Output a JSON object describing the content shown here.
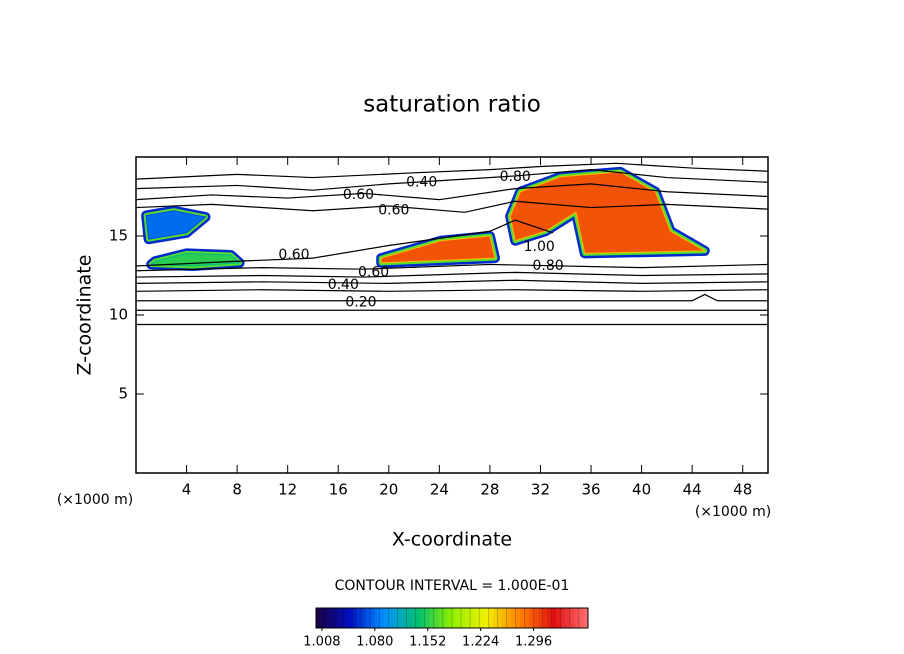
{
  "chart_data": {
    "type": "contour",
    "title": "saturation ratio",
    "x_label": "X-coordinate",
    "y_label": "Z-coordinate",
    "x_unit": "(×1000 m)",
    "y_unit": "(×1000 m)",
    "xlim": [
      0,
      50
    ],
    "ylim": [
      0,
      20
    ],
    "xticks": [
      4,
      8,
      12,
      16,
      20,
      24,
      28,
      32,
      36,
      40,
      44,
      48
    ],
    "yticks": [
      5,
      10,
      15
    ],
    "contour_interval": "CONTOUR INTERVAL = 1.000E-01",
    "contours": [
      {
        "x": [
          0,
          50
        ],
        "y": [
          9.4,
          9.4
        ]
      },
      {
        "x": [
          0,
          50
        ],
        "y": [
          10.3,
          10.3
        ]
      },
      {
        "x": [
          0,
          44,
          45,
          46,
          50
        ],
        "y": [
          10.9,
          10.9,
          11.3,
          10.9,
          10.9
        ]
      },
      {
        "x": [
          0,
          10,
          20,
          30,
          40,
          50
        ],
        "y": [
          11.5,
          11.6,
          11.5,
          11.6,
          11.5,
          11.6
        ]
      },
      {
        "x": [
          0,
          10,
          20,
          30,
          40,
          50
        ],
        "y": [
          12.0,
          12.1,
          12.0,
          12.2,
          12.0,
          12.1
        ]
      },
      {
        "x": [
          0,
          10,
          18,
          30,
          40,
          50
        ],
        "y": [
          12.4,
          12.5,
          12.4,
          12.7,
          12.5,
          12.6
        ]
      },
      {
        "x": [
          0,
          10,
          18,
          28,
          40,
          50
        ],
        "y": [
          12.8,
          13.0,
          12.9,
          13.2,
          13.0,
          13.2
        ]
      },
      {
        "x": [
          0,
          8,
          14,
          20,
          28,
          30,
          33
        ],
        "y": [
          13.1,
          13.4,
          13.6,
          14.4,
          15.3,
          16.0,
          15.2
        ]
      },
      {
        "x": [
          0,
          6,
          14,
          20,
          26,
          30,
          36,
          42,
          50
        ],
        "y": [
          16.8,
          17.0,
          16.6,
          16.9,
          16.5,
          17.2,
          16.8,
          17.0,
          16.7
        ]
      },
      {
        "x": [
          0,
          6,
          12,
          18,
          24,
          30,
          36,
          42,
          50
        ],
        "y": [
          17.3,
          17.6,
          17.4,
          17.7,
          17.3,
          18.0,
          18.3,
          17.8,
          17.5
        ]
      },
      {
        "x": [
          0,
          8,
          14,
          20,
          26,
          30,
          36,
          42,
          50
        ],
        "y": [
          18.0,
          18.2,
          17.9,
          18.3,
          18.6,
          18.8,
          19.2,
          18.7,
          18.4
        ]
      },
      {
        "x": [
          0,
          8,
          14,
          22,
          28,
          32,
          38,
          44,
          50
        ],
        "y": [
          18.6,
          18.9,
          18.7,
          19.0,
          19.2,
          19.4,
          19.6,
          19.3,
          19.1
        ]
      }
    ],
    "regions": [
      {
        "level": 1.296,
        "x": [
          19.4,
          24.1,
          28.0,
          28.4,
          19.4
        ],
        "y": [
          13.6,
          14.7,
          15.0,
          13.6,
          13.3
        ]
      },
      {
        "level": 1.296,
        "x": [
          30.4,
          33.6,
          38.3,
          41.1,
          42.3,
          45.0,
          35.5,
          34.8,
          32.4,
          30.0,
          29.6
        ],
        "y": [
          17.8,
          18.75,
          19.06,
          17.8,
          15.3,
          14.06,
          13.9,
          16.5,
          15.3,
          14.7,
          16.25
        ]
      },
      {
        "level": 1.152,
        "x": [
          1.5,
          4.0,
          7.5,
          8.2,
          4.5,
          1.2
        ],
        "y": [
          13.4,
          13.9,
          13.8,
          13.3,
          13.1,
          13.2
        ]
      },
      {
        "level": 1.08,
        "x": [
          0.8,
          3.0,
          5.5,
          4.0,
          1.0
        ],
        "y": [
          16.3,
          16.6,
          16.2,
          15.2,
          14.8
        ]
      }
    ],
    "annotations": [
      {
        "text": "0.40",
        "x": 22.6,
        "y": 18.4
      },
      {
        "text": "0.60",
        "x": 17.6,
        "y": 17.6
      },
      {
        "text": "0.60",
        "x": 20.4,
        "y": 16.6
      },
      {
        "text": "0.80",
        "x": 30.0,
        "y": 18.75
      },
      {
        "text": "1.00",
        "x": 31.9,
        "y": 14.3
      },
      {
        "text": "0.80",
        "x": 32.6,
        "y": 13.1
      },
      {
        "text": "0.60",
        "x": 12.5,
        "y": 13.8
      },
      {
        "text": "0.60",
        "x": 18.8,
        "y": 12.7
      },
      {
        "text": "0.40",
        "x": 16.4,
        "y": 11.9
      },
      {
        "text": "0.20",
        "x": 17.8,
        "y": 10.8
      }
    ],
    "colormap": [
      "#1a0040",
      "#0010c0",
      "#0090ff",
      "#00c070",
      "#90f000",
      "#f0f000",
      "#ff8000",
      "#e01010",
      "#ff7070"
    ],
    "clim": [
      1.0,
      1.37
    ],
    "colorbar_ticks": [
      1.008,
      {
        "value": 1.08,
        "label": "1.080"
      },
      1.152,
      1.224,
      1.296
    ]
  }
}
